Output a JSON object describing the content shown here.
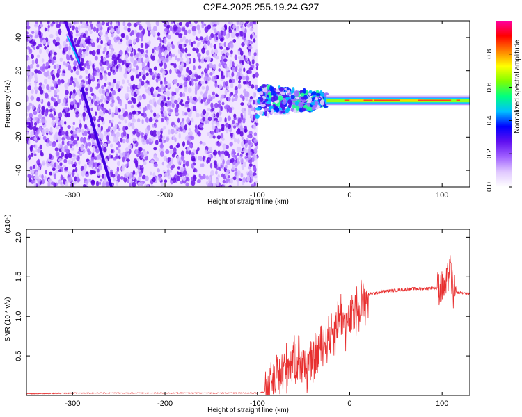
{
  "figure_title": "C2E4.2025.255.19.24.G27",
  "chart_data": [
    {
      "type": "heatmap",
      "xlabel": "Height of straight line (km)",
      "ylabel": "Frequency (Hz)",
      "xlim": [
        -350,
        130
      ],
      "ylim": [
        -50,
        50
      ],
      "x_ticks": [
        -300,
        -200,
        -100,
        0,
        100
      ],
      "x_tick_labels": [
        "-300",
        "-200",
        "-100",
        "0",
        "100"
      ],
      "y_ticks": [
        -40,
        -20,
        0,
        20,
        40
      ],
      "y_tick_labels": [
        "-40",
        "-20",
        "0",
        "20",
        "40"
      ],
      "colorbar": {
        "label": "Normalized spectral amplitude",
        "range": [
          0,
          1
        ],
        "ticks": [
          0.0,
          0.2,
          0.4,
          0.6,
          0.8
        ],
        "tick_labels": [
          "0.0",
          "0.2",
          "0.4",
          "0.6",
          "0.8"
        ],
        "colors": [
          "#ffffff",
          "#e0c8ff",
          "#a060ff",
          "#6010f0",
          "#0000ff",
          "#00c0ff",
          "#00ff80",
          "#80ff00",
          "#ffff00",
          "#ff8000",
          "#ff0000",
          "#ff00a0"
        ]
      },
      "features": {
        "noise_region_x": [
          -350,
          -100
        ],
        "diagonal_streak_1": {
          "x": [
            -308,
            -290
          ],
          "freq": [
            50,
            20
          ]
        },
        "diagonal_streak_2": {
          "x": [
            -290,
            -258
          ],
          "freq": [
            10,
            -50
          ]
        },
        "signal_band": {
          "x": [
            -100,
            130
          ],
          "freq_center": 2,
          "freq_spread_start": 10,
          "freq_spread_end": 2
        }
      }
    },
    {
      "type": "line",
      "xlabel": "Height of straight line (km)",
      "ylabel": "SNR (10 * v/v)",
      "y_scale_label": "(x10⁴)",
      "xlim": [
        -350,
        130
      ],
      "ylim": [
        0,
        2.1
      ],
      "x_ticks": [
        -300,
        -200,
        -100,
        0,
        100
      ],
      "x_tick_labels": [
        "-300",
        "-200",
        "-100",
        "0",
        "100"
      ],
      "y_ticks": [
        0.5,
        1.0,
        1.5,
        2.0
      ],
      "y_tick_labels": [
        "0.5",
        "1.0",
        "1.5",
        "2.0"
      ],
      "series": [
        {
          "name": "SNR",
          "color": "#e83030",
          "x": [
            -350,
            -300,
            -250,
            -200,
            -150,
            -100,
            -90,
            -85,
            -75,
            -65,
            -60,
            -55,
            -50,
            -40,
            -35,
            -30,
            -25,
            -20,
            -15,
            -12,
            -10,
            -5,
            0,
            5,
            10,
            20,
            30,
            40,
            50,
            60,
            70,
            80,
            90,
            100,
            105,
            108,
            110,
            112,
            115,
            120,
            125,
            130
          ],
          "values": [
            0.02,
            0.03,
            0.03,
            0.03,
            0.03,
            0.03,
            0.05,
            0.2,
            0.35,
            0.45,
            0.5,
            0.55,
            0.4,
            0.45,
            0.6,
            0.7,
            0.75,
            0.85,
            0.9,
            1.0,
            1.1,
            0.9,
            1.0,
            1.05,
            1.2,
            1.28,
            1.3,
            1.32,
            1.33,
            1.34,
            1.35,
            1.35,
            1.36,
            1.36,
            1.4,
            1.6,
            1.5,
            1.3,
            1.3,
            1.3,
            1.29,
            1.29
          ]
        }
      ]
    }
  ]
}
